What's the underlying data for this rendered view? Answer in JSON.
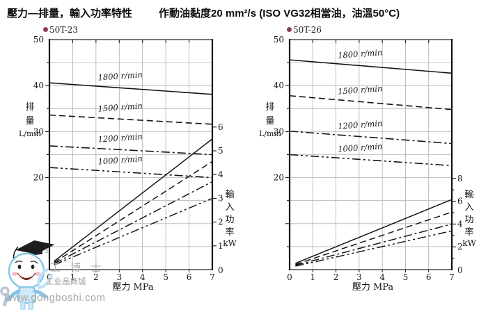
{
  "header": {
    "title_left": "壓力—排量，輸入功率特性",
    "title_right": "作動油黏度20 mm²/s  (ISO VG32相當油，油溫50°C)"
  },
  "watermark": {
    "registered": "®",
    "brand": "工 博 士",
    "mall": "工业品商城",
    "site": "www.gongboshi.com"
  },
  "chart_data": [
    {
      "type": "line",
      "title": "50T-23",
      "bullet_color": "#8e3a62",
      "x_axis": {
        "label": "壓力  MPa",
        "min": 0,
        "max": 7,
        "ticks": [
          0,
          1,
          2,
          3,
          4,
          5,
          6,
          7
        ]
      },
      "y_left": {
        "label_chars": [
          "排",
          "量"
        ],
        "unit": "L/min",
        "min": 0,
        "max": 50,
        "labeled_ticks": [
          20,
          30,
          40,
          50
        ],
        "grid_step": 5
      },
      "y_right": {
        "label_chars": [
          "輸",
          "入",
          "功",
          "率"
        ],
        "unit": "kW",
        "min": 0,
        "max": 6,
        "labeled_ticks": [
          0,
          1,
          2,
          3,
          4,
          5,
          6
        ]
      },
      "series": [
        {
          "name": "1800 r/min",
          "line_style": "solid",
          "flow_L_min": {
            "x": [
              0,
              7
            ],
            "y": [
              40.6,
              38.1
            ]
          },
          "input_power_kW": {
            "x": [
              0.2,
              7
            ],
            "y": [
              0.35,
              5.5
            ]
          }
        },
        {
          "name": "1500 r/min",
          "line_style": "dashed",
          "flow_L_min": {
            "x": [
              0,
              7
            ],
            "y": [
              33.6,
              31.6
            ]
          },
          "input_power_kW": {
            "x": [
              0.2,
              7
            ],
            "y": [
              0.3,
              4.55
            ]
          }
        },
        {
          "name": "1200 r/min",
          "line_style": "dashdot",
          "flow_L_min": {
            "x": [
              0,
              7
            ],
            "y": [
              26.9,
              25.0
            ]
          },
          "input_power_kW": {
            "x": [
              0.2,
              7
            ],
            "y": [
              0.25,
              3.7
            ]
          }
        },
        {
          "name": "1000 r/min",
          "line_style": "dashdotdot",
          "flow_L_min": {
            "x": [
              0,
              7
            ],
            "y": [
              22.2,
              20.0
            ]
          },
          "input_power_kW": {
            "x": [
              0.2,
              7
            ],
            "y": [
              0.2,
              3.0
            ]
          }
        }
      ]
    },
    {
      "type": "line",
      "title": "50T-26",
      "bullet_color": "#8e3a62",
      "x_axis": {
        "label": "壓力  MPa",
        "min": 0,
        "max": 7,
        "ticks": [
          0,
          1,
          2,
          3,
          4,
          5,
          6,
          7
        ]
      },
      "y_left": {
        "label_chars": [
          "排",
          "量"
        ],
        "unit": "L/min",
        "min": 0,
        "max": 50,
        "labeled_ticks": [
          20,
          30,
          40,
          50
        ],
        "grid_step": 5
      },
      "y_right": {
        "label_chars": [
          "輸",
          "入",
          "功",
          "率"
        ],
        "unit": "kW",
        "min": 0,
        "max": 8,
        "labeled_ticks": [
          0,
          2,
          4,
          6,
          8
        ]
      },
      "series": [
        {
          "name": "1800 r/min",
          "line_style": "solid",
          "flow_L_min": {
            "x": [
              0,
              7
            ],
            "y": [
              45.6,
              42.7
            ]
          },
          "input_power_kW": {
            "x": [
              0.25,
              7
            ],
            "y": [
              0.55,
              6.15
            ]
          }
        },
        {
          "name": "1500 r/min",
          "line_style": "dashed",
          "flow_L_min": {
            "x": [
              0,
              7
            ],
            "y": [
              37.8,
              34.8
            ]
          },
          "input_power_kW": {
            "x": [
              0.25,
              7
            ],
            "y": [
              0.45,
              5.05
            ]
          }
        },
        {
          "name": "1200 r/min",
          "line_style": "dashdot",
          "flow_L_min": {
            "x": [
              0,
              7
            ],
            "y": [
              30.1,
              27.4
            ]
          },
          "input_power_kW": {
            "x": [
              0.25,
              7
            ],
            "y": [
              0.38,
              4.0
            ]
          }
        },
        {
          "name": "1000 r/min",
          "line_style": "dashdotdot",
          "flow_L_min": {
            "x": [
              0,
              7
            ],
            "y": [
              25.0,
              22.6
            ]
          },
          "input_power_kW": {
            "x": [
              0.25,
              7
            ],
            "y": [
              0.3,
              3.4
            ]
          }
        }
      ]
    }
  ]
}
